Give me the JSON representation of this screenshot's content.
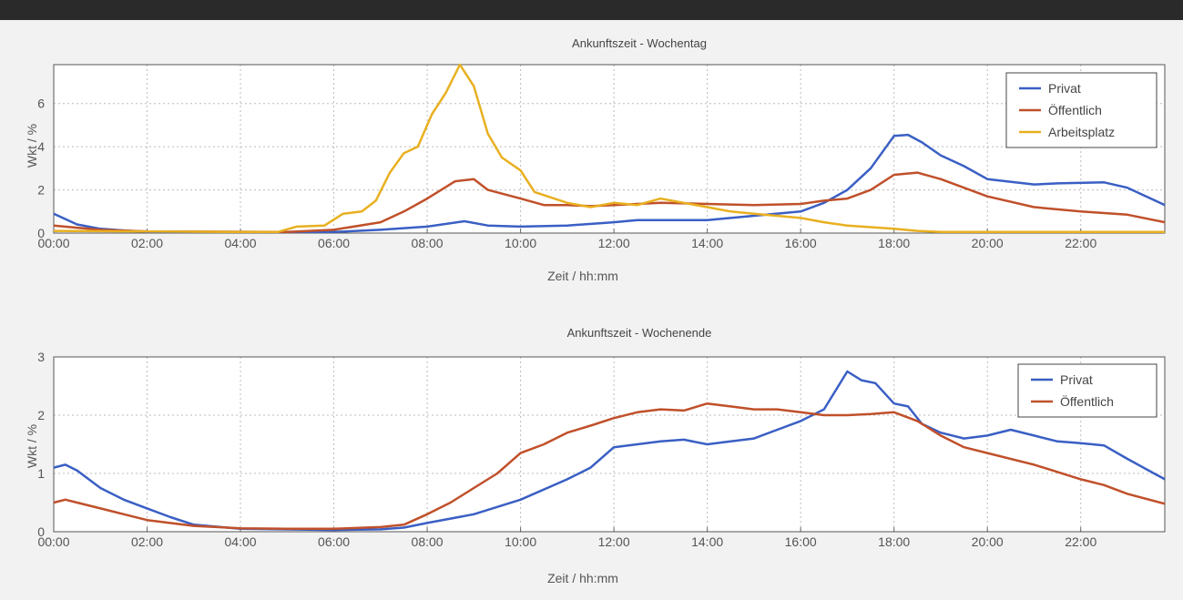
{
  "chart_data": [
    {
      "type": "line",
      "title": "Ankunftszeit - Wochentag",
      "xlabel": "Zeit / hh:mm",
      "ylabel": "Wkt / %",
      "xlim": [
        0,
        23.8
      ],
      "ylim": [
        0,
        7.8
      ],
      "yticks": [
        0,
        2,
        4,
        6
      ],
      "xticks": [
        "00:00",
        "02:00",
        "04:00",
        "06:00",
        "08:00",
        "10:00",
        "12:00",
        "14:00",
        "16:00",
        "18:00",
        "20:00",
        "22:00"
      ],
      "grid": true,
      "legend": "top-right",
      "series": [
        {
          "name": "Privat",
          "color": "#3a5fc4",
          "points": [
            [
              0,
              0.9
            ],
            [
              0.5,
              0.4
            ],
            [
              1,
              0.2
            ],
            [
              2,
              0.05
            ],
            [
              6,
              0.05
            ],
            [
              7,
              0.15
            ],
            [
              8,
              0.3
            ],
            [
              8.8,
              0.55
            ],
            [
              9.3,
              0.35
            ],
            [
              10,
              0.3
            ],
            [
              11,
              0.35
            ],
            [
              12,
              0.5
            ],
            [
              12.5,
              0.6
            ],
            [
              13,
              0.6
            ],
            [
              14,
              0.6
            ],
            [
              15,
              0.8
            ],
            [
              16,
              1.0
            ],
            [
              16.5,
              1.4
            ],
            [
              17,
              2.0
            ],
            [
              17.5,
              3.0
            ],
            [
              18,
              4.5
            ],
            [
              18.3,
              4.55
            ],
            [
              18.6,
              4.2
            ],
            [
              19,
              3.6
            ],
            [
              19.5,
              3.1
            ],
            [
              20,
              2.5
            ],
            [
              21,
              2.25
            ],
            [
              21.5,
              2.3
            ],
            [
              22.5,
              2.35
            ],
            [
              23,
              2.1
            ],
            [
              23.8,
              1.3
            ]
          ]
        },
        {
          "name": "Öffentlich",
          "color": "#c0502a",
          "points": [
            [
              0,
              0.35
            ],
            [
              0.5,
              0.25
            ],
            [
              1,
              0.15
            ],
            [
              2,
              0.08
            ],
            [
              5,
              0.05
            ],
            [
              6,
              0.15
            ],
            [
              7,
              0.5
            ],
            [
              7.5,
              1.0
            ],
            [
              8,
              1.6
            ],
            [
              8.6,
              2.4
            ],
            [
              9,
              2.5
            ],
            [
              9.3,
              2.0
            ],
            [
              10,
              1.6
            ],
            [
              10.5,
              1.3
            ],
            [
              11,
              1.3
            ],
            [
              11.5,
              1.25
            ],
            [
              12,
              1.3
            ],
            [
              13,
              1.4
            ],
            [
              14,
              1.35
            ],
            [
              15,
              1.3
            ],
            [
              16,
              1.35
            ],
            [
              16.5,
              1.5
            ],
            [
              17,
              1.6
            ],
            [
              17.5,
              2.0
            ],
            [
              18,
              2.7
            ],
            [
              18.5,
              2.8
            ],
            [
              19,
              2.5
            ],
            [
              20,
              1.7
            ],
            [
              21,
              1.2
            ],
            [
              22,
              1.0
            ],
            [
              23,
              0.85
            ],
            [
              23.8,
              0.5
            ]
          ]
        },
        {
          "name": "Arbeitsplatz",
          "color": "#e8b020",
          "points": [
            [
              0,
              0.1
            ],
            [
              4,
              0.05
            ],
            [
              4.8,
              0.05
            ],
            [
              5.2,
              0.3
            ],
            [
              5.8,
              0.35
            ],
            [
              6.2,
              0.9
            ],
            [
              6.6,
              1.0
            ],
            [
              6.9,
              1.5
            ],
            [
              7.2,
              2.8
            ],
            [
              7.5,
              3.7
            ],
            [
              7.8,
              4.0
            ],
            [
              8.1,
              5.5
            ],
            [
              8.4,
              6.5
            ],
            [
              8.7,
              7.8
            ],
            [
              9,
              6.8
            ],
            [
              9.3,
              4.6
            ],
            [
              9.6,
              3.5
            ],
            [
              10,
              2.9
            ],
            [
              10.3,
              1.9
            ],
            [
              11,
              1.4
            ],
            [
              11.5,
              1.2
            ],
            [
              12,
              1.4
            ],
            [
              12.5,
              1.3
            ],
            [
              13,
              1.6
            ],
            [
              13.5,
              1.4
            ],
            [
              14,
              1.2
            ],
            [
              14.5,
              1.0
            ],
            [
              15,
              0.9
            ],
            [
              16,
              0.7
            ],
            [
              16.5,
              0.5
            ],
            [
              17,
              0.35
            ],
            [
              18,
              0.2
            ],
            [
              18.5,
              0.1
            ],
            [
              19,
              0.05
            ],
            [
              23.8,
              0.05
            ]
          ]
        }
      ]
    },
    {
      "type": "line",
      "title": "Ankunftszeit - Wochenende",
      "xlabel": "Zeit / hh:mm",
      "ylabel": "Wkt / %",
      "xlim": [
        0,
        23.8
      ],
      "ylim": [
        0,
        3
      ],
      "yticks": [
        0,
        1,
        2,
        3
      ],
      "xticks": [
        "00:00",
        "02:00",
        "04:00",
        "06:00",
        "08:00",
        "10:00",
        "12:00",
        "14:00",
        "16:00",
        "18:00",
        "20:00",
        "22:00"
      ],
      "grid": true,
      "legend": "top-right",
      "series": [
        {
          "name": "Privat",
          "color": "#3a5fc4",
          "points": [
            [
              0,
              1.1
            ],
            [
              0.25,
              1.15
            ],
            [
              0.5,
              1.05
            ],
            [
              1,
              0.75
            ],
            [
              1.5,
              0.55
            ],
            [
              2,
              0.4
            ],
            [
              2.5,
              0.25
            ],
            [
              3,
              0.12
            ],
            [
              4,
              0.05
            ],
            [
              6,
              0.03
            ],
            [
              7,
              0.04
            ],
            [
              7.5,
              0.07
            ],
            [
              8,
              0.15
            ],
            [
              9,
              0.3
            ],
            [
              10,
              0.55
            ],
            [
              11,
              0.9
            ],
            [
              11.5,
              1.1
            ],
            [
              12,
              1.45
            ],
            [
              13,
              1.55
            ],
            [
              13.5,
              1.58
            ],
            [
              14,
              1.5
            ],
            [
              14.5,
              1.55
            ],
            [
              15,
              1.6
            ],
            [
              15.5,
              1.75
            ],
            [
              16,
              1.9
            ],
            [
              16.5,
              2.1
            ],
            [
              17,
              2.75
            ],
            [
              17.3,
              2.6
            ],
            [
              17.6,
              2.55
            ],
            [
              18,
              2.2
            ],
            [
              18.3,
              2.15
            ],
            [
              18.6,
              1.85
            ],
            [
              19,
              1.7
            ],
            [
              19.5,
              1.6
            ],
            [
              20,
              1.65
            ],
            [
              20.5,
              1.75
            ],
            [
              21,
              1.65
            ],
            [
              21.5,
              1.55
            ],
            [
              22,
              1.52
            ],
            [
              22.5,
              1.48
            ],
            [
              23,
              1.25
            ],
            [
              23.8,
              0.9
            ]
          ]
        },
        {
          "name": "Öffentlich",
          "color": "#c0502a",
          "points": [
            [
              0,
              0.5
            ],
            [
              0.25,
              0.55
            ],
            [
              0.5,
              0.5
            ],
            [
              1,
              0.4
            ],
            [
              1.5,
              0.3
            ],
            [
              2,
              0.2
            ],
            [
              3,
              0.1
            ],
            [
              4,
              0.06
            ],
            [
              5,
              0.05
            ],
            [
              6,
              0.05
            ],
            [
              7,
              0.08
            ],
            [
              7.5,
              0.12
            ],
            [
              8,
              0.3
            ],
            [
              8.5,
              0.5
            ],
            [
              9,
              0.75
            ],
            [
              9.5,
              1.0
            ],
            [
              10,
              1.35
            ],
            [
              10.5,
              1.5
            ],
            [
              11,
              1.7
            ],
            [
              11.5,
              1.82
            ],
            [
              12,
              1.95
            ],
            [
              12.5,
              2.05
            ],
            [
              13,
              2.1
            ],
            [
              13.5,
              2.08
            ],
            [
              14,
              2.2
            ],
            [
              14.5,
              2.15
            ],
            [
              15,
              2.1
            ],
            [
              15.5,
              2.1
            ],
            [
              16,
              2.05
            ],
            [
              16.5,
              2.0
            ],
            [
              17,
              2.0
            ],
            [
              17.5,
              2.02
            ],
            [
              18,
              2.05
            ],
            [
              18.5,
              1.9
            ],
            [
              19,
              1.65
            ],
            [
              19.5,
              1.45
            ],
            [
              20,
              1.35
            ],
            [
              21,
              1.15
            ],
            [
              22,
              0.9
            ],
            [
              22.5,
              0.8
            ],
            [
              23,
              0.65
            ],
            [
              23.8,
              0.48
            ]
          ]
        }
      ]
    }
  ]
}
